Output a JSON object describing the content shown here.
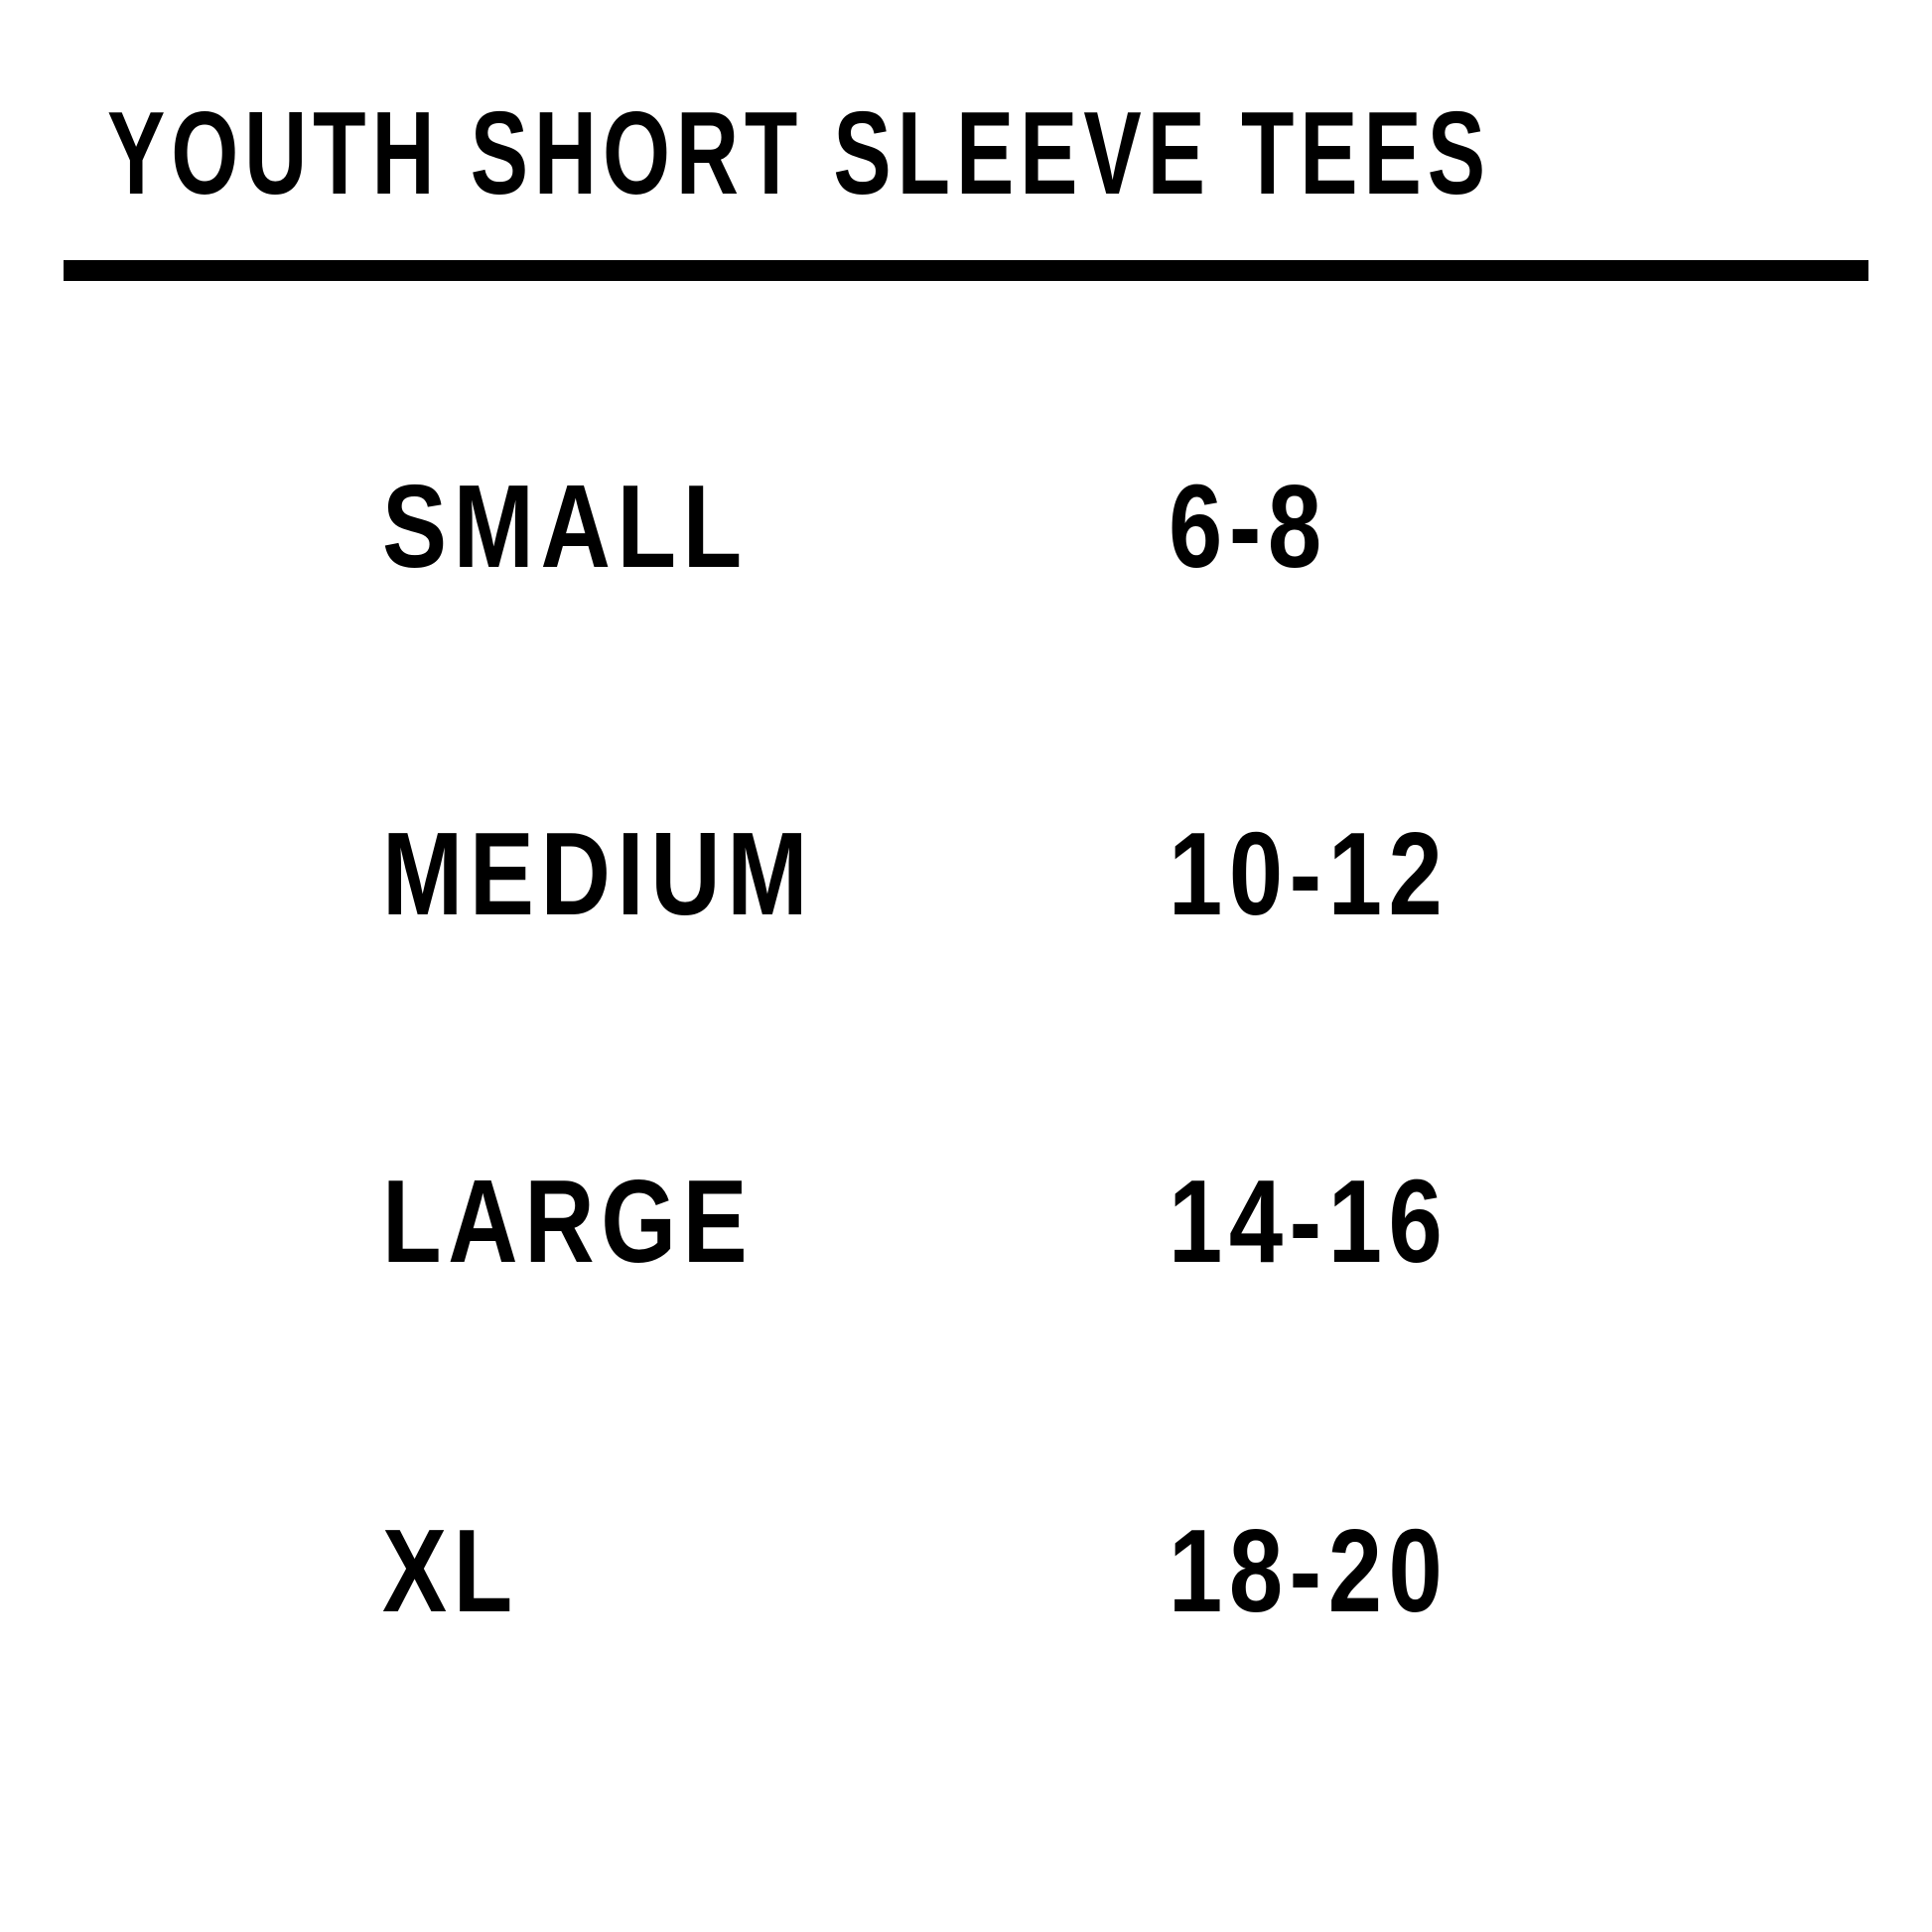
{
  "title": "YOUTH SHORT SLEEVE TEES",
  "colors": {
    "text": "#000000",
    "background": "#ffffff"
  },
  "rows": [
    {
      "size": "SMALL",
      "ages": "6-8"
    },
    {
      "size": "MEDIUM",
      "ages": "10-12"
    },
    {
      "size": "LARGE",
      "ages": "14-16"
    },
    {
      "size": "XL",
      "ages": "18-20"
    }
  ]
}
